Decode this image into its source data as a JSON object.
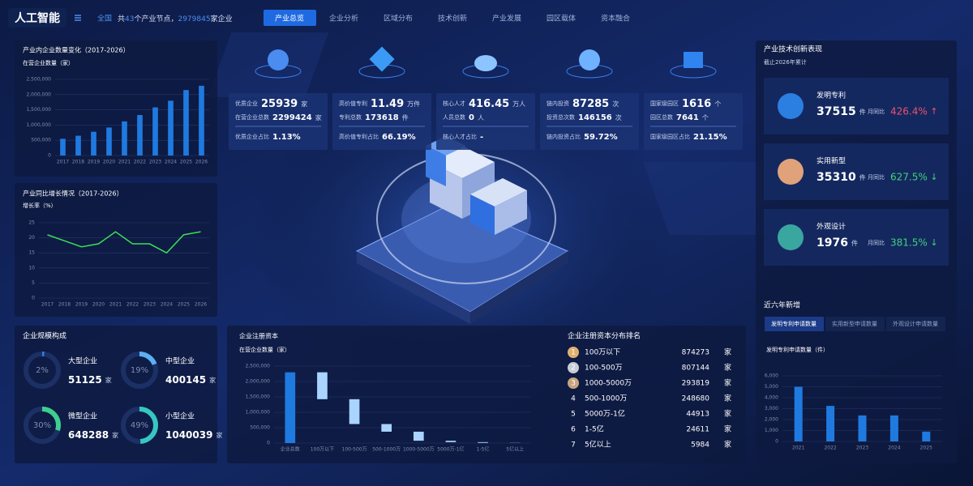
{
  "header": {
    "title": "人工智能",
    "region": "全国",
    "summary": [
      "共",
      "43",
      "个产业节点，",
      "2979845",
      "家企业"
    ]
  },
  "nav": {
    "tabs": [
      "产业总览",
      "企业分析",
      "区域分布",
      "技术创新",
      "产业发展",
      "园区载体",
      "资本融合"
    ],
    "active": 0
  },
  "kpis": [
    {
      "items": [
        {
          "label": "优质企业",
          "value": "25939",
          "unit": "家"
        },
        {
          "label": "在营企业总数",
          "value": "2299424",
          "unit": "家"
        },
        {
          "label": "优质企业占比",
          "value": "1.13%"
        }
      ]
    },
    {
      "items": [
        {
          "label": "高价值专利",
          "value": "11.49",
          "unit": "万件"
        },
        {
          "label": "专利总数",
          "value": "173618",
          "unit": "件"
        },
        {
          "label": "高价值专利占比",
          "value": "66.19%"
        }
      ]
    },
    {
      "items": [
        {
          "label": "核心人才",
          "value": "416.45",
          "unit": "万人"
        },
        {
          "label": "人员总数",
          "value": "0",
          "unit": "人"
        },
        {
          "label": "核心人才占比",
          "value": "-"
        }
      ]
    },
    {
      "items": [
        {
          "label": "链内投资",
          "value": "87285",
          "unit": "次"
        },
        {
          "label": "投资总次数",
          "value": "146156",
          "unit": "次"
        },
        {
          "label": "链内投资占比",
          "value": "59.72%"
        }
      ]
    },
    {
      "items": [
        {
          "label": "国家级园区",
          "value": "1616",
          "unit": "个"
        },
        {
          "label": "园区总数",
          "value": "7641",
          "unit": "个"
        },
        {
          "label": "国家级园区占比",
          "value": "21.15%"
        }
      ]
    }
  ],
  "innovation": {
    "title": "产业技术创新表现",
    "subtitle": "截止2026年累计",
    "items": [
      {
        "name": "发明专利",
        "value": "37515",
        "unit": "件",
        "change_label": "月同比",
        "change": "426.4%",
        "arrow": "↑",
        "color": "#f0506e",
        "icon_color": "#2b7fe0"
      },
      {
        "name": "实用新型",
        "value": "35310",
        "unit": "件",
        "change_label": "月同比",
        "change": "627.5%",
        "arrow": "↓",
        "color": "#3fd27a",
        "icon_color": "#e0a27a"
      },
      {
        "name": "外观设计",
        "value": "1976",
        "unit": "件",
        "change_label": "月同比",
        "change": "381.5%",
        "arrow": "↓",
        "color": "#3fd27a",
        "icon_color": "#3aa6a0"
      }
    ]
  },
  "scale": {
    "title": "企业规模构成",
    "items": [
      {
        "name": "大型企业",
        "percent": 2,
        "percent_label": "2%",
        "count": "51125",
        "unit": "家",
        "color": "#2f7de1"
      },
      {
        "name": "中型企业",
        "percent": 19,
        "percent_label": "19%",
        "count": "400145",
        "unit": "家",
        "color": "#5ab0f0"
      },
      {
        "name": "微型企业",
        "percent": 30,
        "percent_label": "30%",
        "count": "648288",
        "unit": "家",
        "color": "#3ecf8e"
      },
      {
        "name": "小型企业",
        "percent": 49,
        "percent_label": "49%",
        "count": "1040039",
        "unit": "家",
        "color": "#35c7c0"
      }
    ]
  },
  "ranking": {
    "title": "企业注册资本分布排名",
    "rows": [
      {
        "rank": 1,
        "label": "100万以下",
        "value": 874273,
        "unit": "家"
      },
      {
        "rank": 2,
        "label": "100-500万",
        "value": 807144,
        "unit": "家"
      },
      {
        "rank": 3,
        "label": "1000-5000万",
        "value": 293819,
        "unit": "家"
      },
      {
        "rank": 4,
        "label": "500-1000万",
        "value": 248680,
        "unit": "家"
      },
      {
        "rank": 5,
        "label": "5000万-1亿",
        "value": 44913,
        "unit": "家"
      },
      {
        "rank": 6,
        "label": "1-5亿",
        "value": 24611,
        "unit": "家"
      },
      {
        "rank": 7,
        "label": "5亿以上",
        "value": 5984,
        "unit": "家"
      }
    ]
  },
  "recent": {
    "title": "近六年新增",
    "tabs": [
      "发明专利申请数量",
      "实用新型申请数量",
      "外观设计申请数量"
    ],
    "active": 0
  },
  "chart_data": [
    {
      "type": "bar",
      "title": "产业内企业数量变化（2017-2026）",
      "y_label": "在营企业数量（家）",
      "categories": [
        "2017",
        "2018",
        "2019",
        "2020",
        "2021",
        "2022",
        "2023",
        "2024",
        "2025",
        "2026"
      ],
      "values": [
        550000,
        650000,
        780000,
        920000,
        1120000,
        1330000,
        1580000,
        1800000,
        2150000,
        2290000
      ],
      "color": "#1f7ae0",
      "ylim": [
        0,
        2500000
      ],
      "yticks": [
        0,
        {
          "value": 500000,
          "label": "500,000"
        },
        {
          "value": 1000000,
          "label": "1,000,000"
        },
        {
          "value": 1500000,
          "label": "1,500,000"
        },
        {
          "value": 2000000,
          "label": "2,000,000"
        },
        {
          "value": 2500000,
          "label": "2,500,000"
        }
      ],
      "grid": true
    },
    {
      "type": "line",
      "title": "产业同比增长情况（2017-2026）",
      "y_label": "增长率（%）",
      "categories": [
        "2017",
        "2018",
        "2019",
        "2020",
        "2021",
        "2022",
        "2023",
        "2024",
        "2025",
        "2026"
      ],
      "values": [
        21,
        19,
        17,
        18,
        22,
        18,
        18,
        15,
        21,
        22
      ],
      "color": "#3ddc5a",
      "ylim": [
        0,
        25
      ],
      "yticks": [
        0,
        5,
        10,
        15,
        20,
        25
      ],
      "grid": true
    },
    {
      "type": "waterfall",
      "title": "企业注册资本",
      "y_label": "在营企业数量（家）",
      "categories": [
        "企业总数",
        "100万以下",
        "100-500万",
        "500-1000万",
        "1000-5000万",
        "5000万-1亿",
        "1-5亿",
        "5亿以上"
      ],
      "values": [
        2299424,
        874273,
        807144,
        248680,
        293819,
        44913,
        24611,
        5984
      ],
      "color": "#1f7ae0",
      "step_color": "#a8d4ff",
      "ylim": [
        0,
        2500000
      ],
      "yticks": [
        0,
        {
          "value": 500000,
          "label": "500,000"
        },
        {
          "value": 1000000,
          "label": "1,000,000"
        },
        {
          "value": 1500000,
          "label": "1,500,000"
        },
        {
          "value": 2000000,
          "label": "2,000,000"
        },
        {
          "value": 2500000,
          "label": "2,500,000"
        }
      ],
      "grid": true
    },
    {
      "type": "bar",
      "title": "发明专利申请数量（件）",
      "categories": [
        "2021",
        "2022",
        "2023",
        "2024",
        "2025"
      ],
      "values": [
        5000,
        3250,
        2380,
        2380,
        900
      ],
      "color": "#1f7ae0",
      "ylim": [
        0,
        6000
      ],
      "yticks": [
        0,
        {
          "value": 1000,
          "label": "1,000"
        },
        {
          "value": 2000,
          "label": "2,000"
        },
        {
          "value": 3000,
          "label": "3,000"
        },
        {
          "value": 4000,
          "label": "4,000"
        },
        {
          "value": 5000,
          "label": "5,000"
        },
        {
          "value": 6000,
          "label": "6,000"
        }
      ],
      "grid": true
    }
  ]
}
